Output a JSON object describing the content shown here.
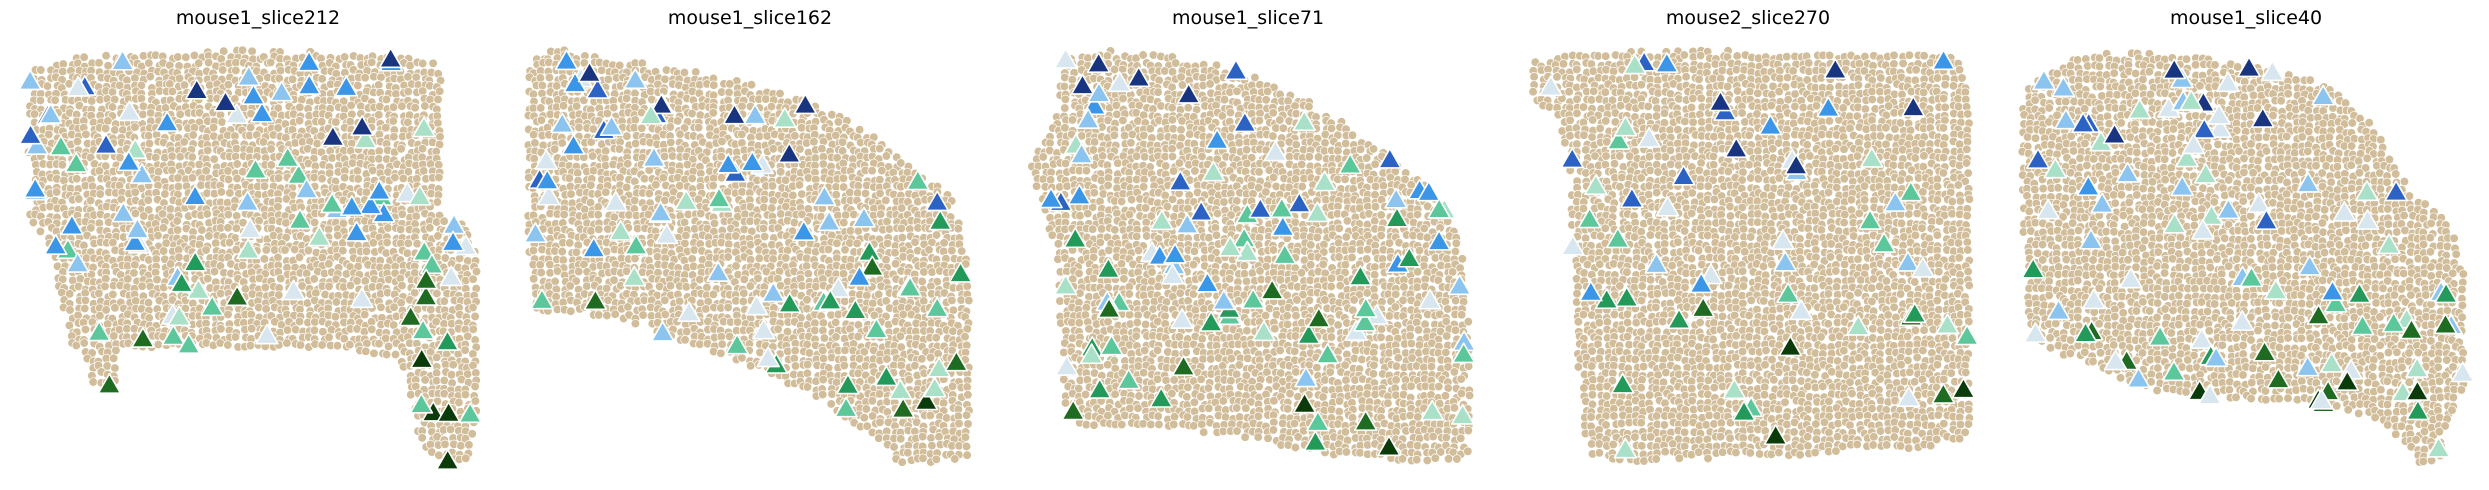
{
  "figure": {
    "background": "#ffffff"
  },
  "chart_data": {
    "type": "scatter",
    "description_note": "Five spatial transcriptomics slices; beige circles are background cells, triangles are marked cells colored by group. No axes, ticks or legend are shown.",
    "background_color": "#d2bd9a",
    "background_edge": "#ffffff",
    "marker_edge": "#ffffff",
    "group_colors": [
      "#0b3b0b",
      "#1e6b21",
      "#23995a",
      "#5cc79b",
      "#a9e0c8",
      "#d7e6ef",
      "#8cc4f0",
      "#3c96e8",
      "#2c62c4",
      "#1a3580"
    ],
    "axes_visible": false,
    "legend": "none",
    "panels": [
      {
        "title": "mouse1_slice212",
        "shape": "slice212"
      },
      {
        "title": "mouse1_slice162",
        "shape": "slice162"
      },
      {
        "title": "mouse1_slice71",
        "shape": "slice71"
      },
      {
        "title": "mouse2_slice270",
        "shape": "slice270"
      },
      {
        "title": "mouse1_slice40",
        "shape": "slice40"
      }
    ]
  }
}
